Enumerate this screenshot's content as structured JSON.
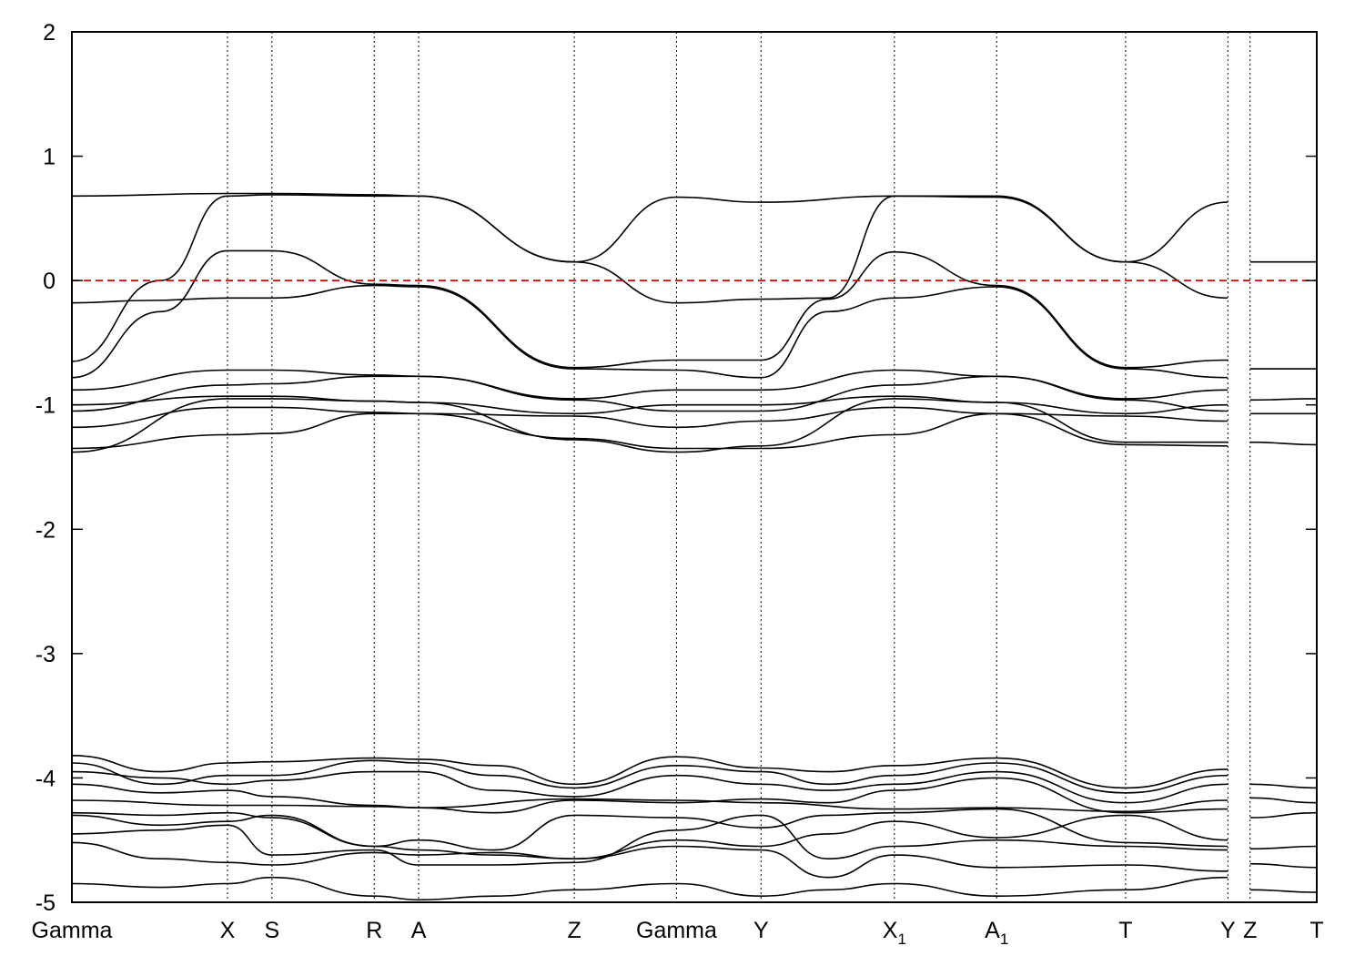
{
  "chart_data": {
    "type": "line",
    "title": "",
    "xlabel": "",
    "ylabel": "",
    "xlim": [
      0,
      28
    ],
    "ylim": [
      -5,
      2
    ],
    "y_ticks": [
      {
        "value": 2,
        "label": "2"
      },
      {
        "value": 1,
        "label": "1"
      },
      {
        "value": 0,
        "label": "0"
      },
      {
        "value": -1,
        "label": "-1"
      },
      {
        "value": -2,
        "label": "-2"
      },
      {
        "value": -3,
        "label": "-3"
      },
      {
        "value": -4,
        "label": "-4"
      },
      {
        "value": -5,
        "label": "-5"
      }
    ],
    "k_points": [
      {
        "x": 0.0,
        "label": "Gamma",
        "sub": ""
      },
      {
        "x": 3.5,
        "label": "X",
        "sub": ""
      },
      {
        "x": 4.5,
        "label": "S",
        "sub": ""
      },
      {
        "x": 6.8,
        "label": "R",
        "sub": ""
      },
      {
        "x": 7.8,
        "label": "A",
        "sub": ""
      },
      {
        "x": 11.3,
        "label": "Z",
        "sub": ""
      },
      {
        "x": 13.6,
        "label": "Gamma",
        "sub": ""
      },
      {
        "x": 15.5,
        "label": "Y",
        "sub": ""
      },
      {
        "x": 18.5,
        "label": "X",
        "sub": "1"
      },
      {
        "x": 20.8,
        "label": "A",
        "sub": "1"
      },
      {
        "x": 23.7,
        "label": "T",
        "sub": ""
      },
      {
        "x": 26.0,
        "label": "Y",
        "sub": ""
      },
      {
        "x": 26.5,
        "label": "Z",
        "sub": ""
      },
      {
        "x": 28.0,
        "label": "T",
        "sub": ""
      }
    ],
    "vertical_lines_at": [
      3.5,
      4.5,
      6.8,
      7.8,
      11.3,
      13.6,
      15.5,
      18.5,
      20.8,
      23.7,
      26.0
    ],
    "fermi_level": {
      "y": 0,
      "color": "#dd0000",
      "style": "dashed"
    },
    "line_color": "#000000",
    "segments": [
      {
        "x_range": [
          0,
          26
        ],
        "bands": [
          {
            "x": [
              0,
              3.5,
              4.5,
              6.8,
              7.8,
              11.3,
              13.6,
              15.5,
              18.5,
              20.8,
              23.7,
              26
            ],
            "y": [
              0.68,
              0.7,
              0.7,
              0.69,
              0.68,
              0.15,
              0.67,
              0.63,
              0.68,
              0.68,
              0.15,
              0.63
            ]
          },
          {
            "x": [
              0,
              2.0,
              3.5,
              4.5,
              6.8,
              7.8,
              11.3,
              13.6,
              15.5,
              17.0,
              18.5,
              20.8,
              23.7,
              26
            ],
            "y": [
              -0.65,
              0.0,
              0.68,
              0.69,
              0.68,
              0.68,
              0.15,
              -0.18,
              -0.15,
              -0.14,
              0.68,
              0.67,
              0.15,
              -0.14
            ]
          },
          {
            "x": [
              0,
              2.0,
              3.5,
              4.5,
              6.8,
              7.8,
              11.3,
              13.6,
              15.5,
              17.0,
              18.5,
              20.8,
              23.7,
              26
            ],
            "y": [
              -0.78,
              -0.25,
              0.24,
              0.24,
              -0.03,
              -0.04,
              -0.7,
              -0.64,
              -0.64,
              -0.15,
              0.23,
              -0.04,
              -0.7,
              -0.64
            ]
          },
          {
            "x": [
              0,
              1.7,
              3.5,
              4.5,
              6.8,
              7.8,
              11.3,
              13.6,
              15.5,
              17.0,
              18.5,
              20.8,
              23.7,
              26
            ],
            "y": [
              -0.18,
              -0.16,
              -0.14,
              -0.14,
              -0.04,
              -0.05,
              -0.71,
              -0.72,
              -0.78,
              -0.25,
              -0.14,
              -0.05,
              -0.71,
              -0.78
            ]
          },
          {
            "x": [
              0,
              3.5,
              4.5,
              6.8,
              7.8,
              11.3,
              13.6,
              15.5,
              18.5,
              20.8,
              23.7,
              26
            ],
            "y": [
              -0.88,
              -0.72,
              -0.72,
              -0.76,
              -0.77,
              -0.95,
              -0.88,
              -0.88,
              -0.72,
              -0.77,
              -0.95,
              -0.88
            ]
          },
          {
            "x": [
              0,
              3.5,
              4.5,
              6.8,
              7.8,
              11.3,
              13.6,
              15.5,
              18.5,
              20.8,
              23.7,
              26
            ],
            "y": [
              -1.0,
              -0.93,
              -0.93,
              -0.97,
              -0.98,
              -1.07,
              -1.0,
              -1.0,
              -0.93,
              -0.98,
              -1.07,
              -1.0
            ]
          },
          {
            "x": [
              0,
              3.5,
              4.5,
              6.8,
              7.8,
              11.3,
              13.6,
              15.5,
              18.5,
              20.8,
              23.7,
              26
            ],
            "y": [
              -1.05,
              -0.84,
              -0.83,
              -0.77,
              -0.77,
              -0.96,
              -1.05,
              -1.05,
              -0.84,
              -0.77,
              -0.96,
              -1.05
            ]
          },
          {
            "x": [
              0,
              3.5,
              4.5,
              6.8,
              7.8,
              11.3,
              13.6,
              15.5,
              18.5,
              20.8,
              23.7,
              26
            ],
            "y": [
              -1.18,
              -1.02,
              -1.02,
              -1.06,
              -1.07,
              -1.09,
              -1.18,
              -1.13,
              -1.02,
              -1.07,
              -1.09,
              -1.13
            ]
          },
          {
            "x": [
              0,
              3.5,
              4.5,
              6.8,
              7.8,
              11.3,
              13.6,
              15.5,
              18.5,
              20.8,
              23.7,
              26
            ],
            "y": [
              -1.35,
              -1.24,
              -1.23,
              -1.07,
              -1.07,
              -1.27,
              -1.35,
              -1.35,
              -1.24,
              -1.07,
              -1.32,
              -1.33
            ]
          },
          {
            "x": [
              0,
              3.5,
              4.5,
              6.8,
              7.8,
              11.3,
              13.6,
              15.5,
              18.5,
              20.8,
              23.7,
              26
            ],
            "y": [
              -1.38,
              -0.95,
              -0.95,
              -0.97,
              -0.98,
              -1.28,
              -1.38,
              -1.33,
              -0.95,
              -0.98,
              -1.3,
              -1.3
            ]
          },
          {
            "x": [
              0,
              2.0,
              3.5,
              4.5,
              6.8,
              7.8,
              9.5,
              11.3,
              13.6,
              15.5,
              17.0,
              18.5,
              20.8,
              23.7,
              26
            ],
            "y": [
              -3.82,
              -3.95,
              -3.88,
              -3.87,
              -3.84,
              -3.85,
              -3.9,
              -4.05,
              -3.83,
              -3.92,
              -3.95,
              -3.9,
              -3.84,
              -4.08,
              -3.93
            ]
          },
          {
            "x": [
              0,
              2.0,
              3.5,
              4.5,
              6.8,
              7.8,
              9.5,
              11.3,
              13.6,
              15.5,
              17.0,
              18.5,
              20.8,
              23.7,
              26
            ],
            "y": [
              -3.88,
              -4.05,
              -3.98,
              -3.98,
              -3.86,
              -3.88,
              -3.98,
              -4.08,
              -3.9,
              -3.95,
              -4.05,
              -3.98,
              -3.88,
              -4.12,
              -3.98
            ]
          },
          {
            "x": [
              0,
              2.0,
              3.5,
              4.5,
              6.8,
              7.8,
              9.5,
              11.3,
              13.6,
              15.5,
              17.0,
              18.5,
              20.8,
              23.7,
              26
            ],
            "y": [
              -3.95,
              -4.0,
              -4.05,
              -4.02,
              -3.95,
              -3.95,
              -4.1,
              -4.15,
              -3.98,
              -4.05,
              -4.1,
              -4.05,
              -3.95,
              -4.2,
              -4.05
            ]
          },
          {
            "x": [
              0,
              2.0,
              3.5,
              4.5,
              6.8,
              7.8,
              9.5,
              11.3,
              13.6,
              15.5,
              17.0,
              18.5,
              20.8,
              23.7,
              26
            ],
            "y": [
              -4.05,
              -4.12,
              -4.1,
              -4.15,
              -4.22,
              -4.24,
              -4.28,
              -4.18,
              -4.2,
              -4.17,
              -4.2,
              -4.1,
              -4.0,
              -4.28,
              -4.25
            ]
          },
          {
            "x": [
              0,
              3.5,
              4.5,
              6.8,
              7.8,
              11.3,
              13.6,
              15.5,
              18.5,
              20.8,
              23.7,
              26
            ],
            "y": [
              -4.18,
              -4.22,
              -4.22,
              -4.23,
              -4.24,
              -4.17,
              -4.18,
              -4.2,
              -4.25,
              -4.24,
              -4.27,
              -4.18
            ]
          },
          {
            "x": [
              0,
              2.0,
              3.5,
              4.5,
              6.8,
              7.8,
              9.5,
              11.3,
              13.6,
              15.5,
              17.0,
              18.5,
              20.8,
              23.7,
              26
            ],
            "y": [
              -4.28,
              -4.3,
              -4.28,
              -4.32,
              -4.55,
              -4.5,
              -4.58,
              -4.3,
              -4.32,
              -4.4,
              -4.3,
              -4.28,
              -4.25,
              -4.52,
              -4.55
            ]
          },
          {
            "x": [
              0,
              2.0,
              3.5,
              4.5,
              6.8,
              7.8,
              9.5,
              11.3,
              13.6,
              15.5,
              17.0,
              18.5,
              20.8,
              23.7,
              26
            ],
            "y": [
              -4.3,
              -4.38,
              -4.35,
              -4.3,
              -4.55,
              -4.58,
              -4.62,
              -4.65,
              -4.5,
              -4.55,
              -4.45,
              -4.35,
              -4.48,
              -4.3,
              -4.5
            ]
          },
          {
            "x": [
              0,
              2.0,
              3.5,
              4.5,
              6.8,
              7.8,
              9.5,
              11.3,
              13.6,
              15.5,
              17.0,
              18.5,
              20.8,
              23.7,
              26
            ],
            "y": [
              -4.45,
              -4.42,
              -4.38,
              -4.62,
              -4.58,
              -4.7,
              -4.7,
              -4.68,
              -4.42,
              -4.3,
              -4.65,
              -4.55,
              -4.5,
              -4.55,
              -4.58
            ]
          },
          {
            "x": [
              0,
              2.0,
              3.5,
              4.5,
              6.8,
              7.8,
              9.5,
              11.3,
              13.6,
              15.5,
              17.0,
              18.5,
              20.8,
              23.7,
              26
            ],
            "y": [
              -4.52,
              -4.65,
              -4.68,
              -4.7,
              -4.6,
              -4.62,
              -4.6,
              -4.65,
              -4.55,
              -4.58,
              -4.8,
              -4.62,
              -4.72,
              -4.7,
              -4.75
            ]
          },
          {
            "x": [
              0,
              2.0,
              3.5,
              4.5,
              6.8,
              7.8,
              9.5,
              11.3,
              13.6,
              15.5,
              17.0,
              18.5,
              20.8,
              23.7,
              26
            ],
            "y": [
              -4.85,
              -4.88,
              -4.85,
              -4.8,
              -4.95,
              -4.98,
              -4.95,
              -4.9,
              -4.85,
              -4.95,
              -4.9,
              -4.85,
              -4.95,
              -4.9,
              -4.8
            ]
          }
        ]
      },
      {
        "x_range": [
          26.5,
          28
        ],
        "bands": [
          {
            "x": [
              26.5,
              28
            ],
            "y": [
              0.15,
              0.15
            ]
          },
          {
            "x": [
              26.5,
              28
            ],
            "y": [
              -0.71,
              -0.71
            ]
          },
          {
            "x": [
              26.5,
              28
            ],
            "y": [
              -0.96,
              -0.95
            ]
          },
          {
            "x": [
              26.5,
              28
            ],
            "y": [
              -1.07,
              -1.07
            ]
          },
          {
            "x": [
              26.5,
              28
            ],
            "y": [
              -1.3,
              -1.32
            ]
          },
          {
            "x": [
              26.5,
              28
            ],
            "y": [
              -4.05,
              -4.08
            ]
          },
          {
            "x": [
              26.5,
              28
            ],
            "y": [
              -4.16,
              -4.2
            ]
          },
          {
            "x": [
              26.5,
              28
            ],
            "y": [
              -4.32,
              -4.28
            ]
          },
          {
            "x": [
              26.5,
              28
            ],
            "y": [
              -4.57,
              -4.55
            ]
          },
          {
            "x": [
              26.5,
              28
            ],
            "y": [
              -4.69,
              -4.72
            ]
          },
          {
            "x": [
              26.5,
              28
            ],
            "y": [
              -4.9,
              -4.92
            ]
          }
        ]
      }
    ],
    "grid": false,
    "legend": "none"
  }
}
